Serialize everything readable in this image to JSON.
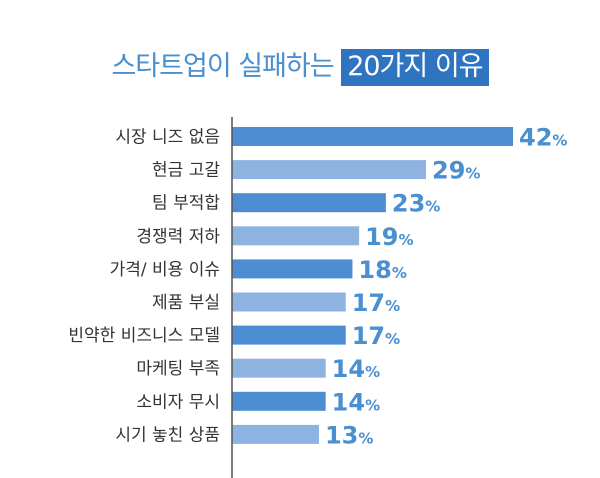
{
  "chart_data": {
    "type": "bar",
    "orientation": "horizontal",
    "title": "스타트업이 실패하는 20가지 이유",
    "title_plain": "스타트업이 실패하는 ",
    "title_highlight": "20가지 이유",
    "categories": [
      "시장 니즈 없음",
      "현금 고갈",
      "팀 부적합",
      "경쟁력 저하",
      "가격/ 비용 이슈",
      "제품 부실",
      "빈약한 비즈니스 모델",
      "마케팅 부족",
      "소비자 무시",
      "시기 놓친 상품"
    ],
    "values": [
      42,
      29,
      23,
      19,
      18,
      17,
      17,
      14,
      14,
      13
    ],
    "unit": "%",
    "colors": [
      "#4d8ed2",
      "#8fb3e0"
    ],
    "value_color": "#4a8fd0",
    "axis_color": "#555555"
  }
}
